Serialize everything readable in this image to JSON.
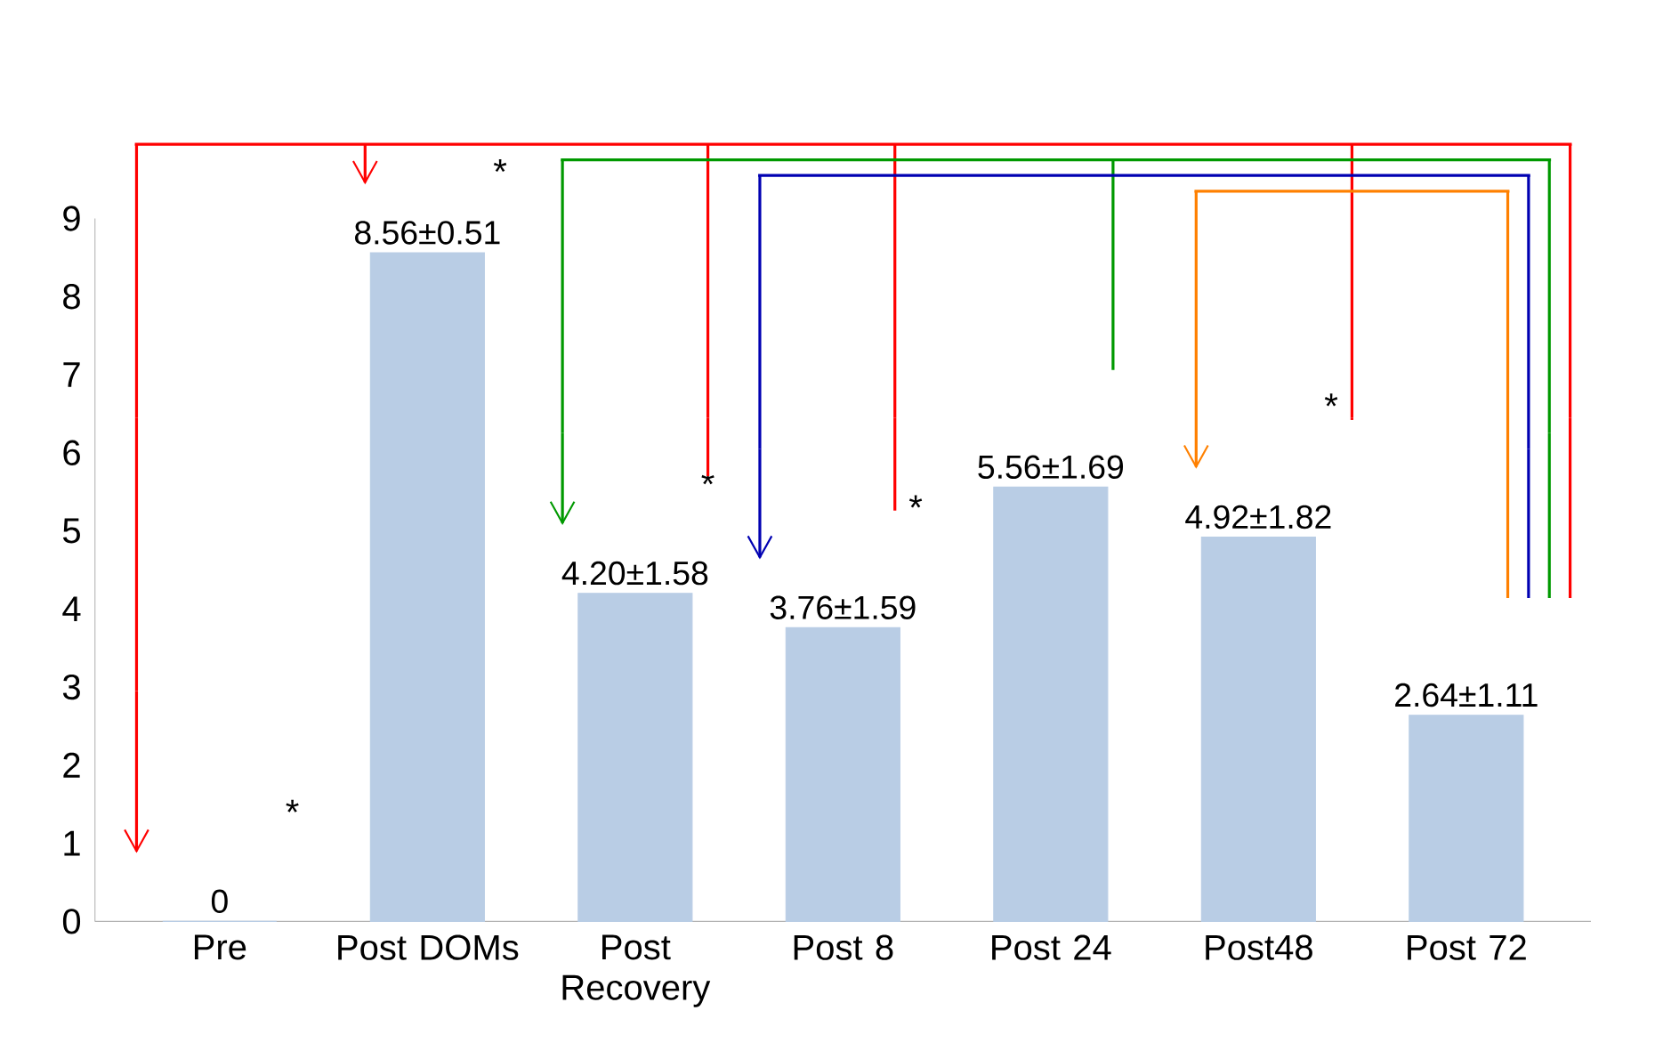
{
  "chart_data": {
    "type": "bar",
    "categories": [
      "Pre",
      "Post DOMs",
      "Post Recovery",
      "Post 8",
      "Post 24",
      "Post48",
      "Post 72"
    ],
    "values": [
      0,
      8.56,
      4.2,
      3.76,
      5.56,
      4.92,
      2.64
    ],
    "value_labels": [
      "0",
      "8.56±0.51",
      "4.20±1.58",
      "3.76±1.59",
      "5.56±1.69",
      "4.92±1.82",
      "2.64±1.11"
    ],
    "color": "#b9cde5",
    "ylim": [
      0,
      9
    ],
    "yticks": [
      0,
      1,
      2,
      3,
      4,
      5,
      6,
      7,
      8,
      9
    ],
    "annotations": [
      "*",
      "*",
      "*",
      "*",
      "*"
    ]
  }
}
